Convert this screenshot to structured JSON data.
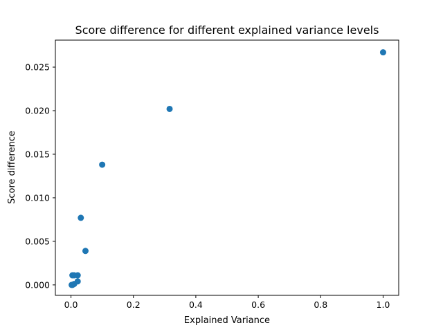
{
  "chart_data": {
    "type": "scatter",
    "title": "Score difference for different explained variance levels",
    "xlabel": "Explained Variance",
    "ylabel": "Score difference",
    "xlim": [
      -0.05,
      1.05
    ],
    "ylim": [
      -0.0012,
      0.0281
    ],
    "xticks": [
      0.0,
      0.2,
      0.4,
      0.6,
      0.8,
      1.0
    ],
    "xtick_labels": [
      "0.0",
      "0.2",
      "0.4",
      "0.6",
      "0.8",
      "1.0"
    ],
    "yticks": [
      0.0,
      0.005,
      0.01,
      0.015,
      0.02,
      0.025
    ],
    "ytick_labels": [
      "0.000",
      "0.005",
      "0.010",
      "0.015",
      "0.020",
      "0.025"
    ],
    "grid": false,
    "legend": "none",
    "color": "#1f77b4",
    "points": [
      {
        "x": 1.0,
        "y": 0.0267
      },
      {
        "x": 0.316,
        "y": 0.0202
      },
      {
        "x": 0.1,
        "y": 0.0138
      },
      {
        "x": 0.0316,
        "y": 0.0077
      },
      {
        "x": 0.0464,
        "y": 0.0039
      },
      {
        "x": 0.0215,
        "y": 0.0011
      },
      {
        "x": 0.01,
        "y": 0.0011
      },
      {
        "x": 0.0046,
        "y": 0.0011
      },
      {
        "x": 0.0215,
        "y": 0.0004
      },
      {
        "x": 0.01,
        "y": 0.0001
      },
      {
        "x": 0.0046,
        "y": 0.0
      },
      {
        "x": 0.0022,
        "y": 0.0
      }
    ]
  }
}
